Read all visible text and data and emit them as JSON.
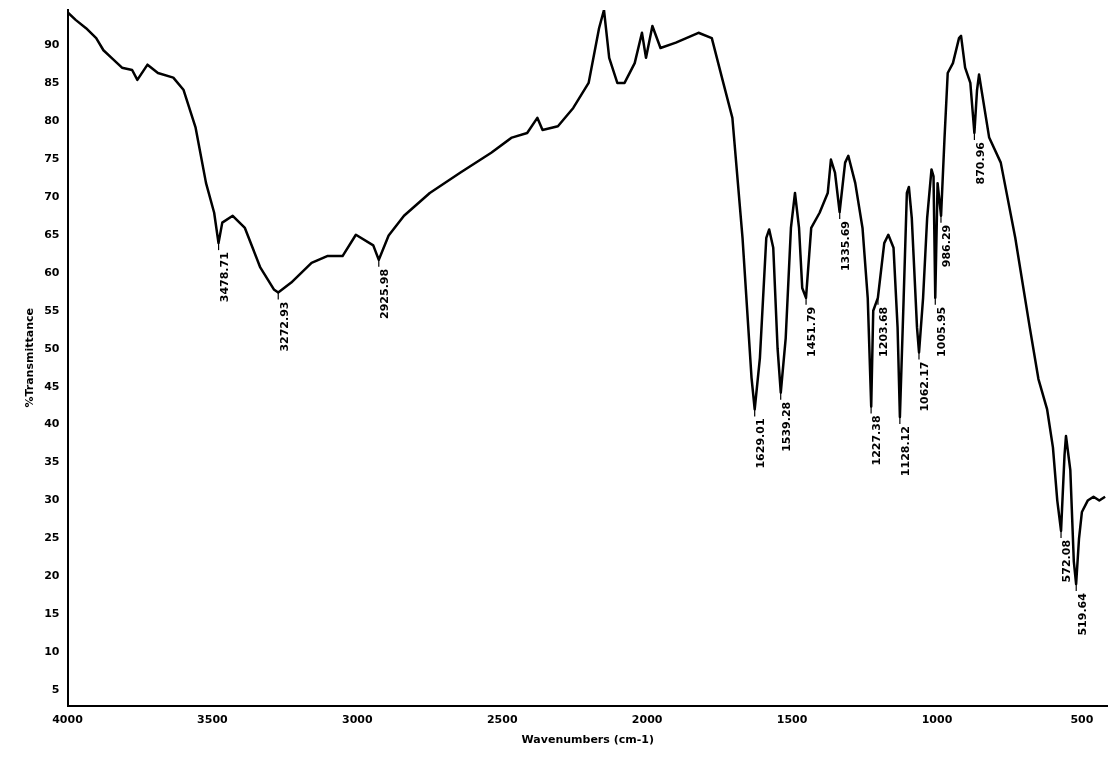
{
  "chart_data": {
    "type": "line",
    "xlabel": "Wavenumbers (cm-1)",
    "ylabel": "%Transmittance",
    "xlim": [
      4000,
      410
    ],
    "xticks": [
      4000,
      3500,
      3000,
      2500,
      2000,
      1500,
      1000,
      500
    ],
    "ylim": [
      3,
      94.6
    ],
    "yticks": [
      5,
      10,
      15,
      20,
      25,
      30,
      35,
      40,
      45,
      50,
      55,
      60,
      65,
      70,
      75,
      80,
      85,
      90
    ],
    "grid": false,
    "legend": false,
    "series": [
      {
        "color": "#000000",
        "x": [
          4000,
          3972,
          3936,
          3901,
          3876,
          3848,
          3812,
          3777,
          3759,
          3724,
          3688,
          3635,
          3600,
          3558,
          3522,
          3494,
          3479,
          3466,
          3430,
          3388,
          3335,
          3288,
          3273,
          3228,
          3158,
          3104,
          3051,
          3005,
          2945,
          2926,
          2892,
          2839,
          2750,
          2644,
          2538,
          2467,
          2414,
          2379,
          2361,
          2308,
          2255,
          2202,
          2166,
          2149,
          2131,
          2103,
          2078,
          2043,
          2018,
          2004,
          1982,
          1954,
          1901,
          1823,
          1777,
          1742,
          1706,
          1671,
          1640,
          1629,
          1611,
          1589,
          1579,
          1565,
          1550,
          1539,
          1522,
          1504,
          1490,
          1476,
          1465,
          1452,
          1434,
          1405,
          1377,
          1366,
          1352,
          1336,
          1317,
          1306,
          1282,
          1257,
          1239,
          1227,
          1220,
          1204,
          1182,
          1168,
          1150,
          1136,
          1128,
          1115,
          1104,
          1097,
          1087,
          1069,
          1062,
          1048,
          1034,
          1019,
          1012,
          1006,
          998,
          986,
          974,
          963,
          945,
          924,
          917,
          903,
          885,
          871,
          862,
          855,
          820,
          780,
          730,
          680,
          650,
          620,
          600,
          585,
          572,
          560,
          555,
          540,
          528,
          520,
          510,
          500,
          480,
          460,
          440,
          420
        ],
        "values": [
          94.3,
          93.3,
          92.2,
          90.9,
          89.3,
          88.3,
          87.0,
          86.7,
          85.4,
          87.4,
          86.3,
          85.7,
          84.1,
          79.1,
          71.8,
          67.9,
          63.9,
          66.6,
          67.5,
          65.9,
          60.7,
          57.8,
          57.4,
          58.7,
          61.3,
          62.2,
          62.2,
          65.0,
          63.6,
          61.7,
          64.9,
          67.5,
          70.5,
          73.2,
          75.8,
          77.8,
          78.4,
          80.4,
          78.8,
          79.3,
          81.7,
          85.0,
          92.2,
          94.6,
          88.3,
          85.0,
          85.0,
          87.6,
          91.6,
          88.3,
          92.5,
          89.6,
          90.3,
          91.6,
          90.9,
          85.7,
          80.4,
          64.6,
          46.2,
          42.0,
          48.8,
          64.6,
          65.7,
          63.3,
          50.0,
          44.2,
          51.4,
          65.9,
          70.5,
          65.9,
          58.0,
          56.7,
          65.9,
          67.9,
          70.5,
          74.9,
          73.2,
          68.0,
          74.5,
          75.4,
          71.8,
          65.9,
          56.7,
          42.4,
          55.0,
          56.7,
          63.9,
          65.0,
          63.3,
          52.8,
          41.0,
          56.7,
          70.5,
          71.3,
          67.2,
          52.8,
          49.5,
          56.7,
          67.2,
          73.6,
          72.7,
          56.7,
          71.8,
          67.5,
          77.8,
          86.3,
          87.6,
          90.9,
          91.2,
          87.0,
          85.0,
          78.4,
          84.0,
          86.1,
          77.8,
          74.5,
          64.6,
          52.8,
          46.0,
          42.0,
          37.0,
          30.0,
          26.0,
          36.0,
          38.5,
          34.0,
          22.0,
          19.0,
          25.0,
          28.5,
          30.0,
          30.5,
          30.0,
          30.5
        ]
      }
    ],
    "annotations": [
      {
        "text": "3478.71",
        "x": 3478.71,
        "y": 63.9
      },
      {
        "text": "3272.93",
        "x": 3272.93,
        "y": 57.4
      },
      {
        "text": "2925.98",
        "x": 2925.98,
        "y": 61.7
      },
      {
        "text": "1629.01",
        "x": 1629.01,
        "y": 42.0
      },
      {
        "text": "1539.28",
        "x": 1539.28,
        "y": 44.2
      },
      {
        "text": "1451.79",
        "x": 1451.79,
        "y": 56.7
      },
      {
        "text": "1335.69",
        "x": 1335.69,
        "y": 68.0
      },
      {
        "text": "1227.38",
        "x": 1227.38,
        "y": 42.4
      },
      {
        "text": "1203.68",
        "x": 1203.68,
        "y": 56.7
      },
      {
        "text": "1128.12",
        "x": 1128.12,
        "y": 41.0
      },
      {
        "text": "1062.17",
        "x": 1062.17,
        "y": 49.5
      },
      {
        "text": "1005.95",
        "x": 1005.95,
        "y": 56.7
      },
      {
        "text": "986.29",
        "x": 986.29,
        "y": 67.5
      },
      {
        "text": "870.96",
        "x": 870.96,
        "y": 78.4
      },
      {
        "text": "572.08",
        "x": 572.08,
        "y": 26.0
      },
      {
        "text": "519.64",
        "x": 519.64,
        "y": 19.0
      }
    ]
  }
}
